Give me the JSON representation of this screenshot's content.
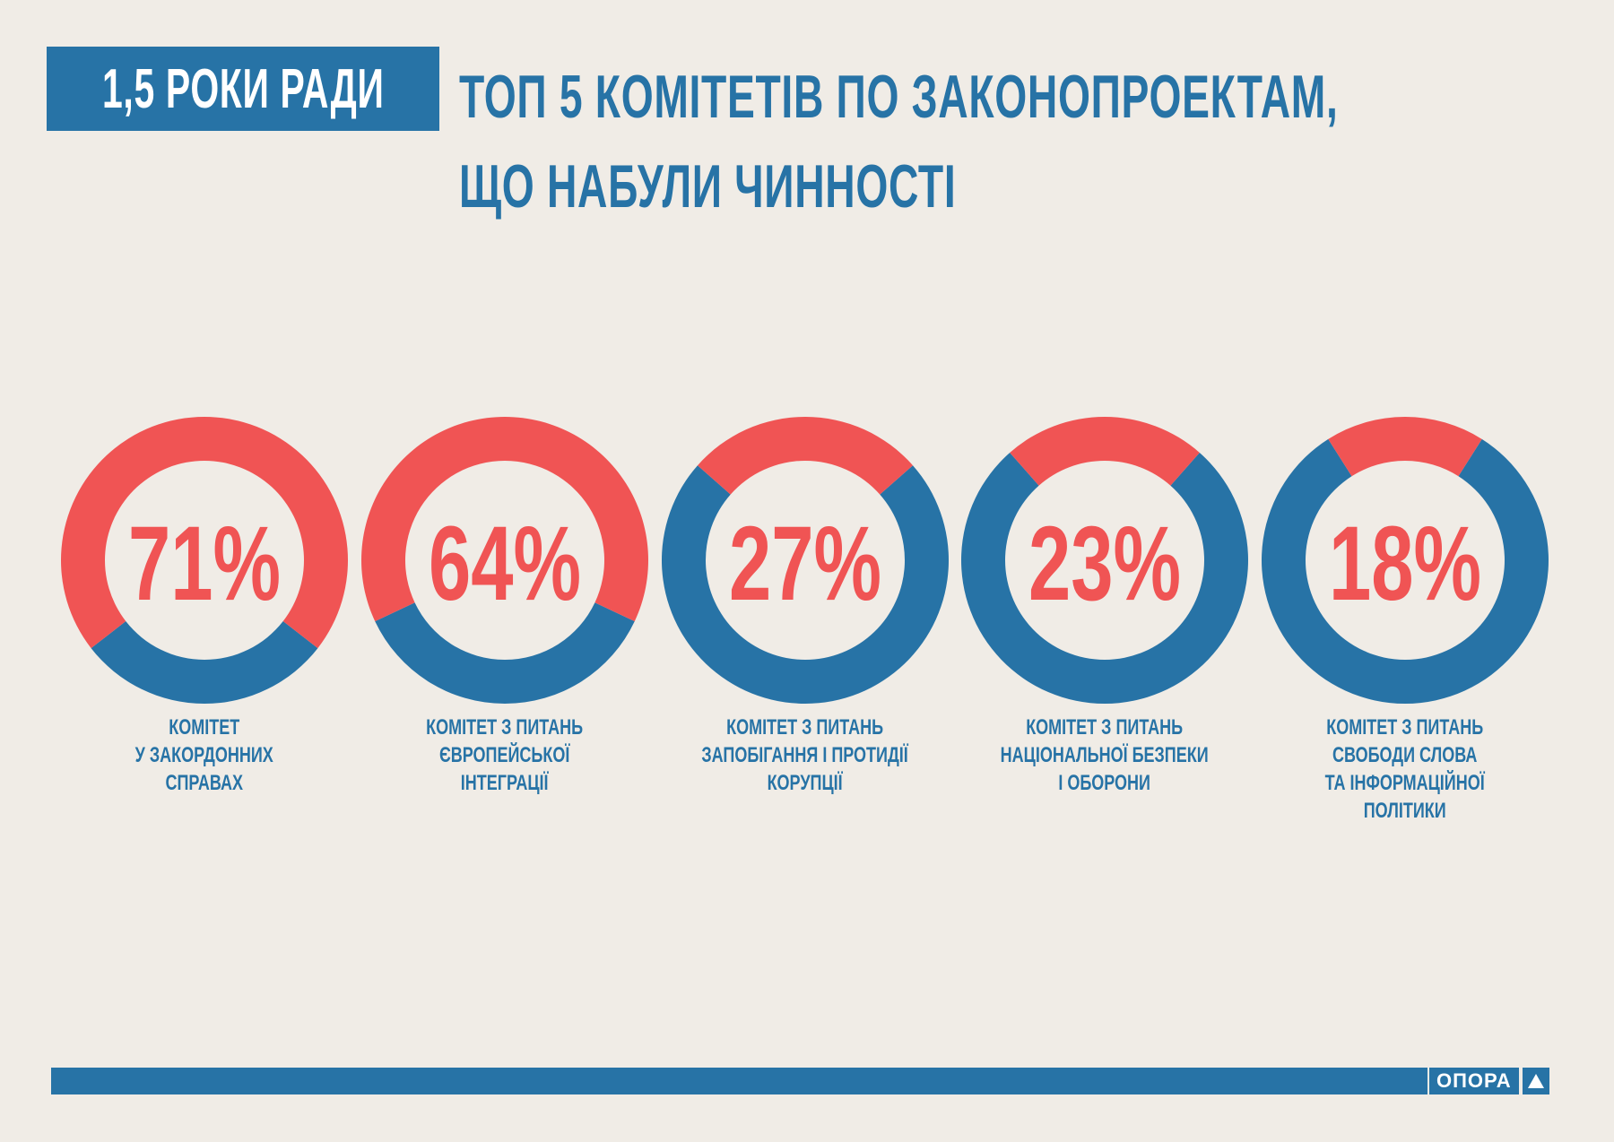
{
  "header": {
    "badge": "1,5 РОКИ РАДИ",
    "title_lines": [
      "ТОП 5 КОМІТЕТІВ ПО ЗАКОНОПРОЕКТАМ,",
      "ЩО НАБУЛИ ЧИННОСТІ"
    ]
  },
  "colors": {
    "red": "#f05454",
    "blue": "#2773a6",
    "background": "#f0ece6"
  },
  "chart_data": {
    "type": "pie",
    "style": "donut",
    "unit": "%",
    "items": [
      {
        "value": 71,
        "label": "71%",
        "caption": [
          "КОМІТЕТ",
          "У ЗАКОРДОННИХ",
          "СПРАВАХ"
        ]
      },
      {
        "value": 64,
        "label": "64%",
        "caption": [
          "КОМІТЕТ З ПИТАНЬ",
          "ЄВРОПЕЙСЬКОЇ",
          "ІНТЕГРАЦІЇ"
        ]
      },
      {
        "value": 27,
        "label": "27%",
        "caption": [
          "КОМІТЕТ З ПИТАНЬ",
          "ЗАПОБІГАННЯ І ПРОТИДІЇ",
          "КОРУПЦІЇ"
        ]
      },
      {
        "value": 23,
        "label": "23%",
        "caption": [
          "КОМІТЕТ З ПИТАНЬ",
          "НАЦІОНАЛЬНОЇ БЕЗПЕКИ",
          "І ОБОРОНИ"
        ]
      },
      {
        "value": 18,
        "label": "18%",
        "caption": [
          "КОМІТЕТ З ПИТАНЬ",
          "СВОБОДИ СЛОВА",
          "ТА ІНФОРМАЦІЙНОЇ",
          "ПОЛІТИКИ"
        ]
      }
    ]
  },
  "footer": {
    "logo_text": "ОПОРА",
    "logo_icon": "triangle-icon"
  }
}
